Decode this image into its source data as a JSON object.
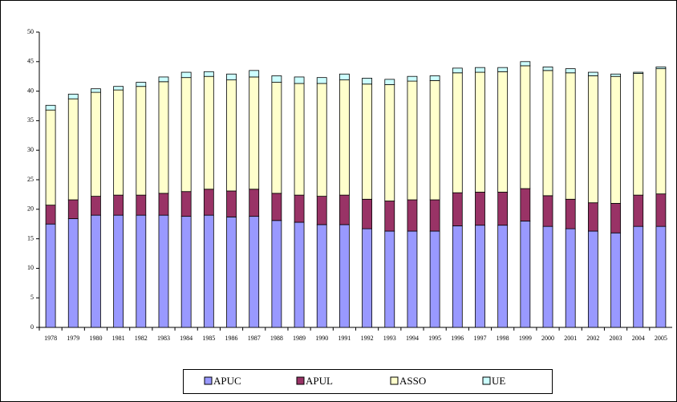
{
  "chart_data": {
    "type": "stacked-bar",
    "categories": [
      "1978",
      "1979",
      "1980",
      "1981",
      "1982",
      "1983",
      "1984",
      "1985",
      "1986",
      "1987",
      "1988",
      "1989",
      "1990",
      "1991",
      "1992",
      "1993",
      "1994",
      "1995",
      "1996",
      "1997",
      "1998",
      "1999",
      "2000",
      "2001",
      "2002",
      "2003",
      "2004",
      "2005"
    ],
    "series": [
      {
        "name": "APUC",
        "color": "#9999ff",
        "values": [
          17.5,
          18.4,
          19,
          19,
          19,
          19,
          18.8,
          19,
          18.7,
          18.8,
          18.1,
          17.8,
          17.4,
          17.4,
          16.7,
          16.3,
          16.3,
          16.3,
          17.2,
          17.3,
          17.3,
          18,
          17.1,
          16.7,
          16.3,
          16,
          17.1,
          17.1
        ]
      },
      {
        "name": "APUL",
        "color": "#993366",
        "values": [
          3.2,
          3.2,
          3.2,
          3.4,
          3.4,
          3.7,
          4.2,
          4.4,
          4.4,
          4.6,
          4.6,
          4.6,
          4.8,
          5,
          5,
          5.1,
          5.3,
          5.3,
          5.6,
          5.6,
          5.6,
          5.5,
          5.2,
          5,
          4.8,
          5,
          5.3,
          5.5
        ]
      },
      {
        "name": "ASSO",
        "color": "#ffffcc",
        "values": [
          16.1,
          17.1,
          17.6,
          17.8,
          18.4,
          18.9,
          19.3,
          19.1,
          18.8,
          19,
          18.8,
          18.9,
          19.1,
          19.5,
          19.5,
          19.7,
          20.1,
          20.2,
          20.3,
          20.3,
          20.4,
          20.8,
          21.2,
          21.4,
          21.5,
          21.5,
          20.6,
          21.2
        ]
      },
      {
        "name": "UE",
        "color": "#ccffff",
        "values": [
          0.8,
          0.8,
          0.6,
          0.6,
          0.7,
          0.8,
          0.9,
          0.8,
          1,
          1.1,
          1.1,
          1.1,
          1,
          1,
          1,
          0.9,
          0.8,
          0.8,
          0.8,
          0.8,
          0.7,
          0.7,
          0.6,
          0.7,
          0.6,
          0.4,
          0.2,
          0.3
        ]
      }
    ],
    "ylim": [
      0,
      50
    ],
    "yticks": [
      0,
      5,
      10,
      15,
      20,
      25,
      30,
      35,
      40,
      45,
      50
    ],
    "grid": false,
    "legend": "bottom"
  }
}
